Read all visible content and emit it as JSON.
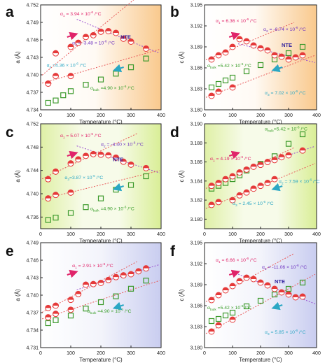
{
  "colors": {
    "bulk": "#3c9a2c",
    "red": "#e53a3a",
    "magenta": "#e0246a",
    "purple": "#6b2fbf",
    "navy": "#2e1f9e",
    "teal": "#2aa7c4",
    "green_text": "#3a9e2a",
    "fit_red": "#e85a5a",
    "fit_purple": "#9a4fd0"
  },
  "chart_data": [
    {
      "type": "scatter",
      "panel": "a",
      "panel_label": "a",
      "bg": "orange",
      "xlabel": "Temperature (°C)",
      "ylabel": "a (Å)",
      "xlim": [
        0,
        400
      ],
      "ylim": [
        4.734,
        4.752
      ],
      "xticks": [
        "0",
        "100",
        "200",
        "300",
        "400"
      ],
      "yticks": [
        "4.734",
        "4.737",
        "4.740",
        "4.743",
        "4.746",
        "4.749",
        "4.752"
      ],
      "series": [
        {
          "kind": "sample",
          "x": [
            25,
            50,
            100,
            125,
            150,
            175,
            200,
            225,
            250,
            275,
            300,
            350
          ],
          "y": [
            4.7385,
            4.7437,
            4.7448,
            4.7455,
            4.7465,
            4.7468,
            4.7474,
            4.7475,
            4.7472,
            4.7462,
            4.7457,
            4.7445
          ]
        },
        {
          "kind": "sample_lower",
          "x": [
            25,
            50,
            100
          ],
          "y": [
            4.7385,
            4.7398,
            4.7398
          ]
        },
        {
          "kind": "bulk",
          "x": [
            25,
            50,
            75,
            100,
            150,
            200,
            250,
            300,
            350
          ],
          "y": [
            4.7352,
            4.7356,
            4.7365,
            4.7372,
            4.7383,
            4.7392,
            4.7402,
            4.7413,
            4.7428
          ]
        }
      ],
      "annotations": [
        {
          "id": "alpha1",
          "main": "α",
          "sub": "1",
          "rest": " = 3.94 × 10",
          "sup": "-6",
          "unit": " /°C",
          "color": "magenta",
          "x": 65,
          "y": 4.7502
        },
        {
          "id": "alpha2",
          "main": "α",
          "sub": "2",
          "rest": " = -3.48 × 10",
          "sup": "-6",
          "unit": " /°C",
          "color": "purple",
          "x": 105,
          "y": 4.7452
        },
        {
          "id": "nte",
          "text": "NTE",
          "color": "navy",
          "x": 265,
          "y": 4.7462
        },
        {
          "id": "alpha3",
          "main": "α",
          "sub": "3",
          "rest": " =4.36 × 10",
          "sup": "-6",
          "unit": " /°C",
          "color": "teal",
          "x": 20,
          "y": 4.7414
        },
        {
          "id": "bulk",
          "main": "α",
          "sub": "bulk",
          "rest": " =4.90 × 10",
          "sup": "-6",
          "unit": " /°C",
          "color": "green_text",
          "x": 165,
          "y": 4.7375
        }
      ]
    },
    {
      "type": "scatter",
      "panel": "b",
      "panel_label": "b",
      "bg": "orange",
      "xlabel": "Temperature (°C)",
      "ylabel": "c (Å)",
      "xlim": [
        0,
        400
      ],
      "ylim": [
        3.18,
        3.195
      ],
      "xticks": [
        "0",
        "100",
        "200",
        "300",
        "400"
      ],
      "yticks": [
        "3.180",
        "3.183",
        "3.186",
        "3.189",
        "3.192",
        "3.195"
      ],
      "series": [
        {
          "kind": "sample",
          "x": [
            25,
            50,
            75,
            100,
            125,
            150,
            175,
            200,
            225,
            250,
            275,
            300,
            325,
            350
          ],
          "y": [
            3.1872,
            3.1878,
            3.1882,
            3.189,
            3.1901,
            3.1898,
            3.1892,
            3.1888,
            3.1885,
            3.1878,
            3.1876,
            3.1872,
            3.1875,
            3.1878
          ]
        },
        {
          "kind": "sample_lower",
          "x": [
            25,
            50,
            100
          ],
          "y": [
            3.182,
            3.1826,
            3.1832
          ]
        },
        {
          "kind": "bulk",
          "x": [
            25,
            50,
            75,
            100,
            150,
            200,
            250,
            300,
            350
          ],
          "y": [
            3.1832,
            3.1837,
            3.1842,
            3.1846,
            3.1855,
            3.1864,
            3.1872,
            3.1881,
            3.189
          ]
        }
      ],
      "annotations": [
        {
          "id": "alpha1",
          "main": "α",
          "sub": "1",
          "rest": " = 6.36 × 10",
          "sup": "-6",
          "unit": " /°C",
          "color": "magenta",
          "x": 40,
          "y": 3.1925
        },
        {
          "id": "alpha2",
          "main": "α",
          "sub": "2",
          "rest": " = -8.74 × 10",
          "sup": "-6",
          "unit": " /°C",
          "color": "purple",
          "x": 210,
          "y": 3.1913
        },
        {
          "id": "nte",
          "text": "NTE",
          "color": "navy",
          "x": 275,
          "y": 3.189
        },
        {
          "id": "bulk",
          "main": "α",
          "sub": "bulk",
          "rest": " =5.42 × 10",
          "sup": "-6",
          "unit": " /°C",
          "color": "green_text",
          "x": 10,
          "y": 3.1861
        },
        {
          "id": "alpha3",
          "main": "α",
          "sub": "3",
          "rest": " = 7.02 × 10",
          "sup": "-6",
          "unit": " /°C",
          "color": "teal",
          "x": 215,
          "y": 3.1822
        }
      ]
    },
    {
      "type": "scatter",
      "panel": "c",
      "panel_label": "c",
      "bg": "green",
      "xlabel": "Temperature (°C)",
      "ylabel": "a (Å)",
      "xlim": [
        0,
        400
      ],
      "ylim": [
        4.734,
        4.752
      ],
      "xticks": [
        "0",
        "100",
        "200",
        "300",
        "400"
      ],
      "yticks": [
        "4.736",
        "4.740",
        "4.744",
        "4.748",
        "4.752"
      ],
      "series": [
        {
          "kind": "sample",
          "x": [
            25,
            50,
            100,
            125,
            150,
            175,
            200,
            225,
            250,
            275,
            300,
            350
          ],
          "y": [
            4.7425,
            4.7438,
            4.7452,
            4.7459,
            4.7465,
            4.7468,
            4.7467,
            4.7466,
            4.7462,
            4.7455,
            4.745,
            4.7444
          ]
        },
        {
          "kind": "sample_lower",
          "x": [
            25,
            50,
            100
          ],
          "y": [
            4.7392,
            4.7398,
            4.7402
          ]
        },
        {
          "kind": "bulk",
          "x": [
            25,
            50,
            100,
            150,
            200,
            250,
            300,
            350
          ],
          "y": [
            4.7355,
            4.7359,
            4.7367,
            4.7377,
            4.7392,
            4.7407,
            4.7415,
            4.743
          ]
        }
      ],
      "annotations": [
        {
          "id": "alpha1",
          "main": "α",
          "sub": "1",
          "rest": " = 5.07 × 10",
          "sup": "-6",
          "unit": " /°C",
          "color": "magenta",
          "x": 65,
          "y": 4.7497
        },
        {
          "id": "alpha2",
          "main": "α",
          "sub": "2",
          "rest": " = -4.40 × 10",
          "sup": "-6",
          "unit": " /°C",
          "color": "purple",
          "x": 200,
          "y": 4.7482
        },
        {
          "id": "nte",
          "text": "NTE",
          "color": "navy",
          "x": 240,
          "y": 4.7456
        },
        {
          "id": "alpha3",
          "main": "α",
          "sub": "3",
          "rest": "=3.87 × 10",
          "sup": "-6",
          "unit": " /°C",
          "color": "teal",
          "x": 80,
          "y": 4.7425
        },
        {
          "id": "bulk",
          "main": "α",
          "sub": "bulk",
          "rest": " =4.90 × 10",
          "sup": "-6",
          "unit": " /°C",
          "color": "green_text",
          "x": 165,
          "y": 4.7372
        }
      ]
    },
    {
      "type": "scatter",
      "panel": "d",
      "panel_label": "d",
      "bg": "green",
      "xlabel": "Temperature (°C)",
      "ylabel": "c (Å)",
      "xlim": [
        0,
        400
      ],
      "ylim": [
        3.179,
        3.19
      ],
      "xticks": [
        "0",
        "100",
        "200",
        "300",
        "400"
      ],
      "yticks": [
        "3.180",
        "3.182",
        "3.184",
        "3.186",
        "3.188",
        "3.190"
      ],
      "series": [
        {
          "kind": "sample",
          "x": [
            25,
            50,
            75,
            100,
            125,
            150,
            175,
            200,
            225,
            250,
            275,
            300,
            350
          ],
          "y": [
            3.1835,
            3.1838,
            3.1842,
            3.1845,
            3.1849,
            3.1852,
            3.1855,
            3.1857,
            3.186,
            3.1862,
            3.1865,
            3.1867,
            3.1872
          ]
        },
        {
          "kind": "sample_lower",
          "x": [
            25,
            50,
            100,
            125,
            150,
            175,
            200,
            225,
            250
          ],
          "y": [
            3.1815,
            3.1818,
            3.182,
            3.1825,
            3.1828,
            3.1832,
            3.1835,
            3.1838,
            3.1842
          ]
        },
        {
          "kind": "bulk",
          "x": [
            25,
            50,
            75,
            100,
            125,
            150,
            200,
            250,
            300,
            350
          ],
          "y": [
            3.1832,
            3.1835,
            3.1838,
            3.1842,
            3.1846,
            3.1851,
            3.1858,
            3.1866,
            3.1879,
            3.1889
          ]
        }
      ],
      "annotations": [
        {
          "id": "bulk",
          "main": "α",
          "sub": "bulk",
          "rest": "=5.42 × 10",
          "sup": "-6",
          "unit": " /°C",
          "color": "green_text",
          "x": 215,
          "y": 3.1893
        },
        {
          "id": "alpha1",
          "main": "α",
          "sub": "1",
          "rest": " = 4.19 × 10",
          "sup": "-6",
          "unit": " /°C",
          "color": "magenta",
          "x": 20,
          "y": 3.1862
        },
        {
          "id": "alpha2",
          "main": "α",
          "sub": "2",
          "rest": " = 7.59 × 10",
          "sup": "-6",
          "unit": " /°C",
          "color": "teal",
          "x": 265,
          "y": 3.1838
        },
        {
          "id": "alpha3",
          "main": "α",
          "sub": "3",
          "rest": " = 2.45 × 10",
          "sup": "-6",
          "unit": " /°C",
          "color": "teal",
          "x": 100,
          "y": 3.1815
        }
      ]
    },
    {
      "type": "scatter",
      "panel": "e",
      "panel_label": "e",
      "bg": "blue",
      "xlabel": "Temperature (°C)",
      "ylabel": "a (Å)",
      "xlim": [
        0,
        400
      ],
      "ylim": [
        4.731,
        4.749
      ],
      "xticks": [
        "0",
        "100",
        "200",
        "300",
        "400"
      ],
      "yticks": [
        "4.731",
        "4.734",
        "4.737",
        "4.740",
        "4.743",
        "4.746",
        "4.749"
      ],
      "series": [
        {
          "kind": "sample",
          "x": [
            25,
            50,
            100,
            125,
            150,
            175,
            200,
            225,
            250,
            275,
            300,
            325,
            350
          ],
          "y": [
            4.7378,
            4.7382,
            4.7392,
            4.7402,
            4.7418,
            4.7419,
            4.7421,
            4.7426,
            4.7431,
            4.7434,
            4.7436,
            4.7441,
            4.7446
          ]
        },
        {
          "kind": "sample_lower",
          "x": [
            25,
            50,
            100
          ],
          "y": [
            4.7362,
            4.7368,
            4.7375
          ]
        },
        {
          "kind": "bulk",
          "x": [
            25,
            50,
            100,
            150,
            200,
            250,
            300,
            350
          ],
          "y": [
            4.7352,
            4.7357,
            4.7365,
            4.7377,
            4.7388,
            4.7398,
            4.7411,
            4.7425
          ]
        }
      ],
      "annotations": [
        {
          "id": "alpha1",
          "main": "α",
          "sub": "1",
          "rest": " = 2.91 × 10",
          "sup": "-6",
          "unit": " /°C",
          "color": "magenta",
          "x": 105,
          "y": 4.7448
        },
        {
          "id": "bulk",
          "main": "α",
          "sub": "bulk",
          "rest": " =4.90 × 10",
          "sup": "-6",
          "unit": " /°C",
          "color": "green_text",
          "x": 155,
          "y": 4.737
        }
      ]
    },
    {
      "type": "scatter",
      "panel": "f",
      "panel_label": "f",
      "bg": "blue",
      "xlabel": "Temperature (°C)",
      "ylabel": "c (Å)",
      "xlim": [
        0,
        400
      ],
      "ylim": [
        3.18,
        3.195
      ],
      "xticks": [
        "0",
        "100",
        "200",
        "300",
        "400"
      ],
      "yticks": [
        "3.180",
        "3.183",
        "3.186",
        "3.189",
        "3.192",
        "3.195"
      ],
      "series": [
        {
          "kind": "sample",
          "x": [
            25,
            50,
            75,
            100,
            125,
            150,
            175,
            200,
            225,
            250,
            275,
            300,
            325,
            350
          ],
          "y": [
            3.1868,
            3.1875,
            3.1882,
            3.1888,
            3.1895,
            3.19,
            3.1898,
            3.1893,
            3.1889,
            3.1884,
            3.1879,
            3.1876,
            3.1872,
            3.1873
          ]
        },
        {
          "kind": "sample_lower",
          "x": [
            25,
            50,
            100
          ],
          "y": [
            3.1823,
            3.1832,
            3.184
          ]
        },
        {
          "kind": "bulk",
          "x": [
            25,
            50,
            75,
            100,
            150,
            200,
            250,
            300,
            350
          ],
          "y": [
            3.1838,
            3.1841,
            3.1846,
            3.185,
            3.1859,
            3.1867,
            3.1876,
            3.1884,
            3.1893
          ]
        }
      ],
      "annotations": [
        {
          "id": "alpha1",
          "main": "α",
          "sub": "1",
          "rest": " = 6.66 × 10",
          "sup": "-6",
          "unit": " /°C",
          "color": "magenta",
          "x": 40,
          "y": 3.1923
        },
        {
          "id": "alpha2",
          "main": "α",
          "sub": "2",
          "rest": " = -11.06 × 10",
          "sup": "-6",
          "unit": " /°C",
          "color": "purple",
          "x": 205,
          "y": 3.1913
        },
        {
          "id": "nte",
          "text": "NTE",
          "color": "navy",
          "x": 250,
          "y": 3.1892
        },
        {
          "id": "bulk",
          "main": "α",
          "sub": "bulk",
          "rest": " =5.42 × 10",
          "sup": "-6",
          "unit": " /°C",
          "color": "green_text",
          "x": 10,
          "y": 3.1855
        },
        {
          "id": "alpha3",
          "main": "α",
          "sub": "3",
          "rest": " = 5.85 × 10",
          "sup": "-6",
          "unit": " /°C",
          "color": "teal",
          "x": 215,
          "y": 3.182
        }
      ]
    }
  ]
}
